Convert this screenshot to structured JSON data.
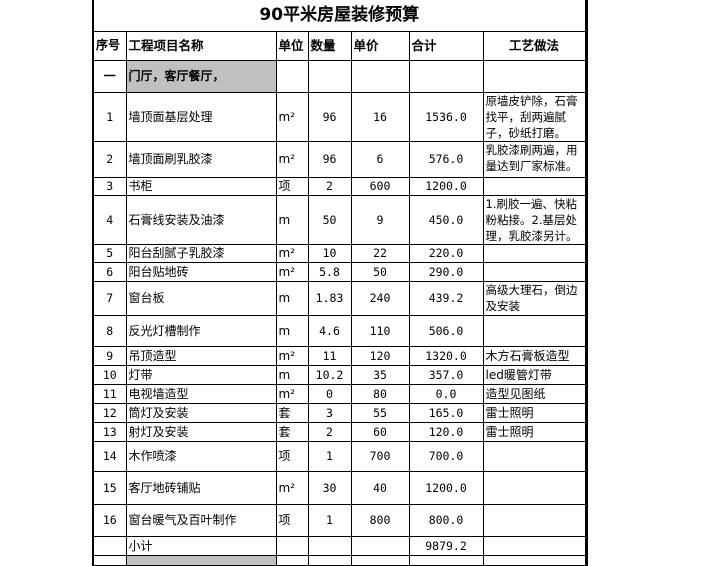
{
  "title": "90平米房屋装修预算",
  "headers": {
    "no": "序号",
    "name": "工程项目名称",
    "unit": "单位",
    "qty": "数量",
    "price": "单价",
    "total": "合计",
    "craft": "工艺做法"
  },
  "section": {
    "no": "一",
    "name": "门厅，客厅餐厅，"
  },
  "rows": [
    {
      "no": "1",
      "name": "墙顶面基层处理",
      "unit": "m²",
      "qty": "96",
      "price": "16",
      "total": "1536.0",
      "craft": "原墙皮铲除，石膏找平，刮两遍腻子，砂纸打磨。"
    },
    {
      "no": "2",
      "name": "墙顶面刷乳胶漆",
      "unit": "m²",
      "qty": "96",
      "price": "6",
      "total": "576.0",
      "craft": "乳胶漆刷两遍，用量达到厂家标准。"
    },
    {
      "no": "3",
      "name": "书柜",
      "unit": "项",
      "qty": "2",
      "price": "600",
      "total": "1200.0",
      "craft": ""
    },
    {
      "no": "4",
      "name": "石膏线安装及油漆",
      "unit": "m",
      "qty": "50",
      "price": "9",
      "total": "450.0",
      "craft": "1.刷胶一遍、快粘粉粘接。2.基层处理，乳胶漆另计。"
    },
    {
      "no": "5",
      "name": "阳台刮腻子乳胶漆",
      "unit": "m²",
      "qty": "10",
      "price": "22",
      "total": "220.0",
      "craft": ""
    },
    {
      "no": "6",
      "name": "阳台贴地砖",
      "unit": "m²",
      "qty": "5.8",
      "price": "50",
      "total": "290.0",
      "craft": ""
    },
    {
      "no": "7",
      "name": "窗台板",
      "unit": "m",
      "qty": "1.83",
      "price": "240",
      "total": "439.2",
      "craft": "高级大理石，倒边及安装"
    },
    {
      "no": "8",
      "name": "反光灯槽制作",
      "unit": "m",
      "qty": "4.6",
      "price": "110",
      "total": "506.0",
      "craft": ""
    },
    {
      "no": "9",
      "name": "吊顶造型",
      "unit": "m²",
      "qty": "11",
      "price": "120",
      "total": "1320.0",
      "craft": "木方石膏板造型"
    },
    {
      "no": "10",
      "name": "灯带",
      "unit": "m",
      "qty": "10.2",
      "price": "35",
      "total": "357.0",
      "craft": "led暖管灯带"
    },
    {
      "no": "11",
      "name": "电视墙造型",
      "unit": "m²",
      "qty": "0",
      "price": "80",
      "total": "0.0",
      "craft": "造型见图纸"
    },
    {
      "no": "12",
      "name": "筒灯及安装",
      "unit": "套",
      "qty": "3",
      "price": "55",
      "total": "165.0",
      "craft": "雷士照明"
    },
    {
      "no": "13",
      "name": "射灯及安装",
      "unit": "套",
      "qty": "2",
      "price": "60",
      "total": "120.0",
      "craft": "雷士照明"
    },
    {
      "no": "14",
      "name": "木作喷漆",
      "unit": "项",
      "qty": "1",
      "price": "700",
      "total": "700.0",
      "craft": ""
    },
    {
      "no": "15",
      "name": "客厅地砖铺贴",
      "unit": "m²",
      "qty": "30",
      "price": "40",
      "total": "1200.0",
      "craft": ""
    },
    {
      "no": "16",
      "name": "窗台暖气及百叶制作",
      "unit": "项",
      "qty": "1",
      "price": "800",
      "total": "800.0",
      "craft": ""
    }
  ],
  "subtotal": {
    "label": "小计",
    "total": "9879.2"
  }
}
